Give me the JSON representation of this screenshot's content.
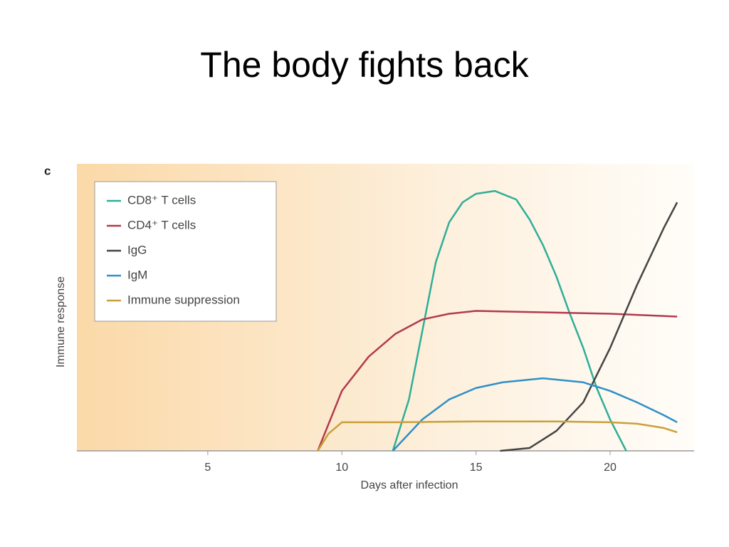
{
  "header": {
    "title": "The body fights back"
  },
  "chart_data": {
    "type": "line",
    "panel_label": "c",
    "xlabel": "Days after infection",
    "ylabel": "Immune response",
    "xlim": [
      0,
      23
    ],
    "xticks": [
      5,
      10,
      15,
      20
    ],
    "ylim": [
      0,
      100
    ],
    "legend": "top-left",
    "series": [
      {
        "name": "CD8⁺ T cells",
        "color": "#2fae98",
        "x": [
          11.9,
          12.5,
          13,
          13.5,
          14,
          14.5,
          15,
          15.7,
          16.5,
          17,
          17.5,
          18,
          18.5,
          19,
          19.5,
          20,
          20.6
        ],
        "values": [
          0,
          18,
          42,
          66,
          80,
          87,
          90,
          91,
          88,
          81,
          72,
          61,
          48,
          36,
          22,
          11,
          0
        ]
      },
      {
        "name": "CD4⁺ T cells",
        "color": "#b23a4e",
        "x": [
          9.1,
          10,
          11,
          12,
          13,
          14,
          15,
          17,
          20,
          22.5
        ],
        "values": [
          0,
          21,
          33,
          41,
          46,
          48,
          49,
          48.6,
          48,
          47
        ]
      },
      {
        "name": "IgG",
        "color": "#444444",
        "x": [
          15.9,
          17,
          18,
          19,
          20,
          21,
          22,
          22.5
        ],
        "values": [
          0,
          1,
          7,
          17,
          36,
          58,
          78,
          87
        ]
      },
      {
        "name": "IgM",
        "color": "#2f8fc8",
        "x": [
          11.9,
          13,
          14,
          15,
          16,
          17.5,
          19,
          20,
          21,
          22,
          22.5
        ],
        "values": [
          0,
          11,
          18,
          22,
          24,
          25.4,
          24,
          21,
          17,
          12.5,
          10
        ]
      },
      {
        "name": "Immune suppression",
        "color": "#c9a03a",
        "x": [
          9.1,
          9.5,
          10,
          12,
          15,
          18,
          20,
          21,
          22,
          22.5
        ],
        "values": [
          0,
          6,
          10,
          10,
          10.3,
          10.3,
          10,
          9.5,
          8,
          6.5
        ]
      }
    ]
  }
}
